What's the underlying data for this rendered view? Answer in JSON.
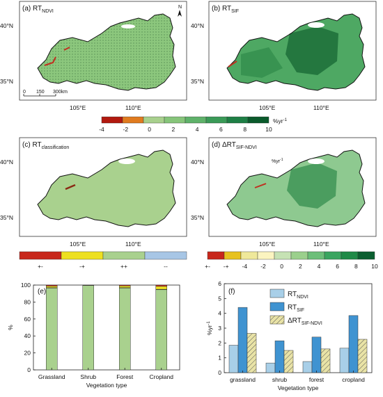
{
  "colors": {
    "rt_scale": [
      "#b2190f",
      "#e07b1f",
      "#a8d08d",
      "#86c57a",
      "#5fb26a",
      "#3a9a57",
      "#1e7f45",
      "#0a5a2b"
    ],
    "classification_scale": [
      "#c8271b",
      "#ede021",
      "#a9d18e",
      "#a7c6e5"
    ],
    "delta_scale": [
      "#c8271b",
      "#e7c21e",
      "#efe89a",
      "#fbf4c0",
      "#c6e2b4",
      "#9bd08c",
      "#6cbf79",
      "#3aa560",
      "#1f8a47",
      "#0b5f30"
    ],
    "map_base": "#8cc77d",
    "map_base_sif": "#4ea863",
    "map_base_class": "#a9d18e",
    "map_base_delta": "#8ec990",
    "bar_grassland": "#a9d18e",
    "bar_ndvi": "#a8cfe8",
    "bar_sif": "#3f93d1",
    "bar_delta": "#e9e3a6"
  },
  "icons": {
    "north_arrow": "north-arrow-icon"
  },
  "panels": {
    "a": {
      "label": "(a) RT",
      "sub": "NDVI"
    },
    "b": {
      "label": "(b) RT",
      "sub": "SIF"
    },
    "c": {
      "label": "(c) RT",
      "sub": "classification"
    },
    "d": {
      "label": "(d) ΔRT",
      "sub": "SIF-NDVI"
    },
    "e": {
      "label": "(e)"
    },
    "f": {
      "label": "(f)"
    }
  },
  "map_axes": {
    "lat_ticks": [
      "40°N",
      "35°N"
    ],
    "lon_ticks": [
      "105°E",
      "110°E"
    ],
    "north": "N",
    "scalebar": [
      "0",
      "150",
      "300km"
    ]
  },
  "colorbar_rt": {
    "ticks": [
      "-4",
      "-2",
      "0",
      "2",
      "4",
      "6",
      "8",
      "10"
    ],
    "unit": "%yr",
    "unit_sup": "-1"
  },
  "colorbar_class": {
    "labels": [
      "+-",
      "-+",
      "++",
      "--"
    ]
  },
  "colorbar_delta": {
    "ticks": [
      "+-",
      "-+",
      "-4",
      "-2",
      "0",
      "2",
      "4",
      "6",
      "8",
      "10"
    ],
    "unit": "%yr",
    "unit_sup": "-1"
  },
  "chart_data": [
    {
      "type": "bar",
      "panel": "e",
      "stacked": true,
      "categories": [
        "Grassland",
        "Shrub",
        "Forest",
        "Cropland"
      ],
      "series": [
        {
          "name": "++",
          "values": [
            96.5,
            99.5,
            96.5,
            94.5
          ]
        },
        {
          "name": "--",
          "values": [
            0.5,
            0.0,
            0.5,
            0.5
          ]
        },
        {
          "name": "-+",
          "values": [
            1.8,
            0.3,
            2.0,
            3.5
          ]
        },
        {
          "name": "+-",
          "values": [
            1.2,
            0.2,
            1.0,
            1.5
          ]
        }
      ],
      "xlabel": "Vegetation type",
      "ylabel": "%",
      "ylim": [
        0,
        100
      ],
      "yticks": [
        "0",
        "20",
        "40",
        "60",
        "80",
        "100"
      ]
    },
    {
      "type": "bar",
      "panel": "f",
      "categories": [
        "grassland",
        "shrub",
        "forest",
        "cropland"
      ],
      "series": [
        {
          "name": "RT",
          "sub": "NDVI",
          "values": [
            1.85,
            0.65,
            0.75,
            1.65
          ]
        },
        {
          "name": "RT",
          "sub": "SIF",
          "values": [
            4.4,
            2.15,
            2.4,
            3.85
          ]
        },
        {
          "name": "ΔRT",
          "sub": "SIF-NDVI",
          "values": [
            2.65,
            1.5,
            1.6,
            2.25
          ]
        }
      ],
      "xlabel": "Vegetation type",
      "ylabel": "%yr",
      "ylabel_sup": "-1",
      "ylim": [
        0,
        6
      ],
      "yticks": [
        "0",
        "1",
        "2",
        "3",
        "4",
        "5",
        "6"
      ],
      "legend": "top-center"
    }
  ]
}
